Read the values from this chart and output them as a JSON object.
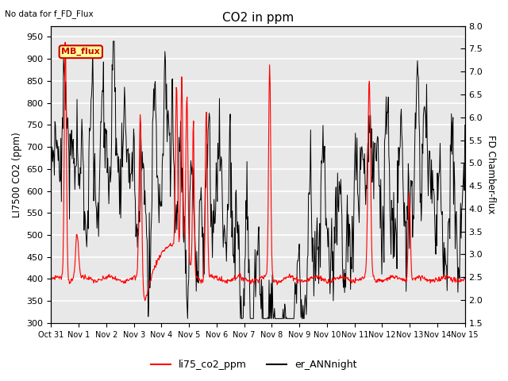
{
  "title": "CO2 in ppm",
  "top_left_text": "No data for f_FD_Flux",
  "ylabel_left": "LI7500 CO2 (ppm)",
  "ylabel_right": "FD Chamber-flux",
  "ylim_left": [
    300,
    975
  ],
  "ylim_right": [
    1.5,
    8.0
  ],
  "yticks_left": [
    300,
    350,
    400,
    450,
    500,
    550,
    600,
    650,
    700,
    750,
    800,
    850,
    900,
    950
  ],
  "yticks_right": [
    1.5,
    2.0,
    2.5,
    3.0,
    3.5,
    4.0,
    4.5,
    5.0,
    5.5,
    6.0,
    6.5,
    7.0,
    7.5,
    8.0
  ],
  "xtick_labels": [
    "Oct 31",
    "Nov 1",
    "Nov 2",
    "Nov 3",
    "Nov 4",
    "Nov 5",
    "Nov 6",
    "Nov 7",
    "Nov 8",
    "Nov 9",
    "Nov 10",
    "Nov 11",
    "Nov 12",
    "Nov 13",
    "Nov 14",
    "Nov 15"
  ],
  "mb_flux_box_color": "#ffff99",
  "mb_flux_text_color": "#cc0000",
  "mb_flux_border_color": "#cc0000",
  "legend_labels": [
    "li75_co2_ppm",
    "er_ANNnight"
  ],
  "legend_colors": [
    "red",
    "black"
  ],
  "plot_bg_color": "#e8e8e8",
  "grid_color": "white"
}
